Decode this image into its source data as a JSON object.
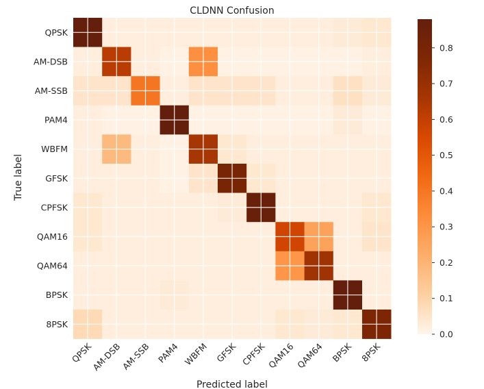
{
  "chart_data": {
    "type": "heatmap",
    "title": "CLDNN Confusion",
    "xlabel": "Predicted label",
    "ylabel": "True label",
    "x_categories": [
      "QPSK",
      "AM-DSB",
      "AM-SSB",
      "PAM4",
      "WBFM",
      "GFSK",
      "CPFSK",
      "QAM16",
      "QAM64",
      "BPSK",
      "8PSK"
    ],
    "y_categories": [
      "QPSK",
      "AM-DSB",
      "AM-SSB",
      "PAM4",
      "WBFM",
      "GFSK",
      "CPFSK",
      "QAM16",
      "QAM64",
      "BPSK",
      "8PSK"
    ],
    "values": [
      [
        0.88,
        0.02,
        0.02,
        0.02,
        0.02,
        0.02,
        0.02,
        0.02,
        0.02,
        0.03,
        0.04
      ],
      [
        0.02,
        0.62,
        0.02,
        0.01,
        0.32,
        0.01,
        0.01,
        0.01,
        0.01,
        0.01,
        0.02
      ],
      [
        0.05,
        0.05,
        0.4,
        0.02,
        0.05,
        0.05,
        0.05,
        0.02,
        0.02,
        0.06,
        0.03
      ],
      [
        0.02,
        0.01,
        0.01,
        0.88,
        0.01,
        0.01,
        0.01,
        0.01,
        0.01,
        0.03,
        0.01
      ],
      [
        0.02,
        0.18,
        0.02,
        0.01,
        0.66,
        0.04,
        0.02,
        0.02,
        0.02,
        0.02,
        0.02
      ],
      [
        0.02,
        0.02,
        0.02,
        0.01,
        0.05,
        0.8,
        0.04,
        0.02,
        0.02,
        0.02,
        0.02
      ],
      [
        0.04,
        0.02,
        0.02,
        0.02,
        0.02,
        0.03,
        0.86,
        0.02,
        0.02,
        0.02,
        0.04
      ],
      [
        0.04,
        0.02,
        0.02,
        0.02,
        0.02,
        0.02,
        0.02,
        0.57,
        0.26,
        0.02,
        0.05
      ],
      [
        0.02,
        0.02,
        0.02,
        0.02,
        0.02,
        0.02,
        0.02,
        0.3,
        0.68,
        0.02,
        0.02
      ],
      [
        0.02,
        0.02,
        0.02,
        0.03,
        0.02,
        0.02,
        0.02,
        0.02,
        0.02,
        0.88,
        0.02
      ],
      [
        0.08,
        0.02,
        0.02,
        0.02,
        0.02,
        0.02,
        0.02,
        0.04,
        0.03,
        0.04,
        0.78
      ]
    ],
    "colorbar": {
      "range": [
        0.0,
        0.88
      ],
      "ticks": [
        "0.0",
        "0.1",
        "0.2",
        "0.3",
        "0.4",
        "0.5",
        "0.6",
        "0.7",
        "0.8"
      ],
      "colormap": "Oranges-to-dark-red",
      "colors": [
        "#fff5eb",
        "#fdd0a2",
        "#fdae6b",
        "#fd8d3c",
        "#f16913",
        "#d94801",
        "#a63603",
        "#7f2704",
        "#641f0c"
      ]
    },
    "grid": true,
    "grid_color": "#ffffff"
  }
}
